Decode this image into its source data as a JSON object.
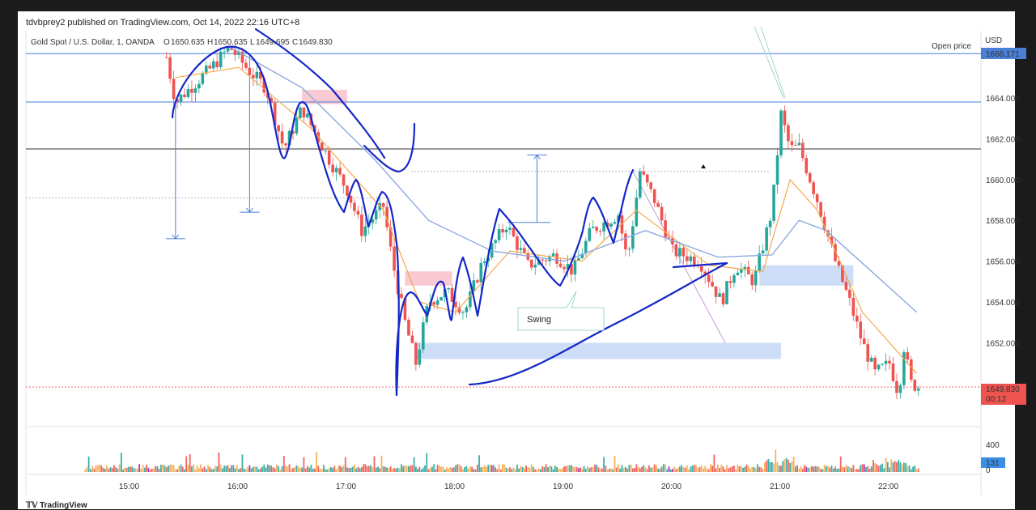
{
  "header": {
    "published_text": "tdvbprey2 published on TradingView.com, Oct 14, 2022 22:16 UTC+8"
  },
  "legend": {
    "symbol": "Gold Spot / U.S. Dollar, 1, OANDA",
    "o_label": "O",
    "o_value": "1650.635",
    "h_label": "H",
    "h_value": "1650.635",
    "l_label": "L",
    "l_value": "1649.695",
    "c_label": "C",
    "c_value": "1649.830",
    "color_up": "#26a69a",
    "color_down": "#ef5350"
  },
  "price_axis": {
    "currency": "USD",
    "ticks": [
      "1664.000",
      "1662.000",
      "1660.000",
      "1658.000",
      "1656.000",
      "1654.000",
      "1652.000"
    ],
    "open_price_label": "Open price",
    "open_price_value": "1666.171",
    "last_price": "1649.830",
    "countdown": "00:12"
  },
  "volume_axis": {
    "tick": "400",
    "zero": "0",
    "last_volume": "131"
  },
  "time_axis": {
    "ticks": [
      "15:00",
      "16:00",
      "17:00",
      "18:00",
      "19:00",
      "20:00",
      "21:00",
      "22:00"
    ]
  },
  "annotations": {
    "swing_label": "Swing"
  },
  "footer": {
    "brand": "TradingView"
  },
  "chart_data": {
    "type": "candlestick",
    "title": "",
    "symbol": "Gold Spot / U.S. Dollar",
    "timeframe": "1",
    "broker": "OANDA",
    "ylim": [
      1648,
      1667
    ],
    "x_range": [
      "14:35",
      "22:16"
    ],
    "price_path": [
      {
        "t": "15:20",
        "p": 1666.0
      },
      {
        "t": "15:25",
        "p": 1663.8
      },
      {
        "t": "15:45",
        "p": 1665.5
      },
      {
        "t": "15:55",
        "p": 1666.5
      },
      {
        "t": "16:05",
        "p": 1665.4
      },
      {
        "t": "16:15",
        "p": 1664.5
      },
      {
        "t": "16:25",
        "p": 1661.5
      },
      {
        "t": "16:35",
        "p": 1663.5
      },
      {
        "t": "16:50",
        "p": 1661.0
      },
      {
        "t": "17:00",
        "p": 1659.5
      },
      {
        "t": "17:08",
        "p": 1657.5
      },
      {
        "t": "17:20",
        "p": 1658.7
      },
      {
        "t": "17:25",
        "p": 1656.0
      },
      {
        "t": "17:32",
        "p": 1653.0
      },
      {
        "t": "17:38",
        "p": 1651.0
      },
      {
        "t": "17:45",
        "p": 1654.0
      },
      {
        "t": "17:55",
        "p": 1654.5
      },
      {
        "t": "18:05",
        "p": 1653.5
      },
      {
        "t": "18:15",
        "p": 1656.0
      },
      {
        "t": "18:28",
        "p": 1657.8
      },
      {
        "t": "18:40",
        "p": 1655.8
      },
      {
        "t": "18:55",
        "p": 1656.3
      },
      {
        "t": "19:05",
        "p": 1655.5
      },
      {
        "t": "19:15",
        "p": 1657.5
      },
      {
        "t": "19:30",
        "p": 1658.3
      },
      {
        "t": "19:35",
        "p": 1656.0
      },
      {
        "t": "19:42",
        "p": 1660.4
      },
      {
        "t": "19:50",
        "p": 1659.0
      },
      {
        "t": "20:00",
        "p": 1656.5
      },
      {
        "t": "20:15",
        "p": 1656.0
      },
      {
        "t": "20:27",
        "p": 1654.0
      },
      {
        "t": "20:35",
        "p": 1655.8
      },
      {
        "t": "20:45",
        "p": 1655.0
      },
      {
        "t": "20:55",
        "p": 1658.5
      },
      {
        "t": "21:00",
        "p": 1663.2
      },
      {
        "t": "21:05",
        "p": 1661.5
      },
      {
        "t": "21:10",
        "p": 1661.6
      },
      {
        "t": "21:20",
        "p": 1659.0
      },
      {
        "t": "21:30",
        "p": 1656.0
      },
      {
        "t": "21:38",
        "p": 1654.0
      },
      {
        "t": "21:45",
        "p": 1652.0
      },
      {
        "t": "21:52",
        "p": 1650.5
      },
      {
        "t": "22:00",
        "p": 1651.0
      },
      {
        "t": "22:05",
        "p": 1649.5
      },
      {
        "t": "22:08",
        "p": 1651.8
      },
      {
        "t": "22:12",
        "p": 1650.0
      },
      {
        "t": "22:16",
        "p": 1649.83
      }
    ],
    "ema_fast": [
      {
        "t": "15:25",
        "p": 1665.0
      },
      {
        "t": "16:00",
        "p": 1665.5
      },
      {
        "t": "16:40",
        "p": 1662.5
      },
      {
        "t": "17:20",
        "p": 1658.5
      },
      {
        "t": "17:40",
        "p": 1654.0
      },
      {
        "t": "18:00",
        "p": 1653.5
      },
      {
        "t": "18:30",
        "p": 1656.5
      },
      {
        "t": "19:10",
        "p": 1656.0
      },
      {
        "t": "19:40",
        "p": 1658.5
      },
      {
        "t": "20:20",
        "p": 1655.8
      },
      {
        "t": "20:50",
        "p": 1655.5
      },
      {
        "t": "21:05",
        "p": 1660.0
      },
      {
        "t": "21:20",
        "p": 1658.5
      },
      {
        "t": "21:45",
        "p": 1653.5
      },
      {
        "t": "22:15",
        "p": 1650.5
      }
    ],
    "sma_slow": [
      {
        "t": "15:55",
        "p": 1666.5
      },
      {
        "t": "16:35",
        "p": 1664.5
      },
      {
        "t": "17:15",
        "p": 1661.0
      },
      {
        "t": "17:45",
        "p": 1658.0
      },
      {
        "t": "18:20",
        "p": 1656.5
      },
      {
        "t": "19:00",
        "p": 1656.0
      },
      {
        "t": "19:45",
        "p": 1657.5
      },
      {
        "t": "20:25",
        "p": 1656.2
      },
      {
        "t": "20:55",
        "p": 1656.3
      },
      {
        "t": "21:10",
        "p": 1658.0
      },
      {
        "t": "21:25",
        "p": 1657.5
      },
      {
        "t": "21:50",
        "p": 1655.5
      },
      {
        "t": "22:15",
        "p": 1653.5
      }
    ],
    "horizontal_lines": [
      {
        "price": 1666.171,
        "color": "#4a7fd6"
      },
      {
        "price": 1663.8,
        "color": "#4a7fd6"
      },
      {
        "price": 1661.5,
        "color": "#333333"
      }
    ],
    "zones": [
      {
        "t0": "16:35",
        "t1": "17:00",
        "p0": 1663.7,
        "p1": 1664.4,
        "color": "#f8c0cc"
      },
      {
        "t0": "17:32",
        "t1": "17:58",
        "p0": 1654.8,
        "p1": 1655.5,
        "color": "#f8c0cc"
      },
      {
        "t0": "17:38",
        "t1": "21:00",
        "p0": 1651.2,
        "p1": 1652.0,
        "color": "#c6d8f7"
      },
      {
        "t0": "20:48",
        "t1": "21:40",
        "p0": 1654.8,
        "p1": 1655.8,
        "color": "#c6d8f7"
      }
    ],
    "volume": {
      "ylim": [
        0,
        400
      ],
      "last_value": 131
    }
  }
}
